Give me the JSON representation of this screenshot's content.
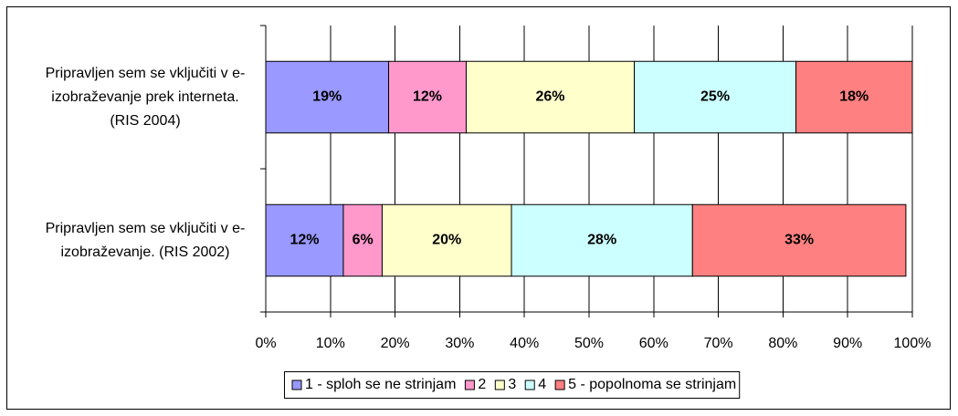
{
  "chart_data": {
    "type": "stacked-barh",
    "categories": [
      "Pripravljen sem se vključiti v e-izobraževanje prek interneta. (RIS 2004)",
      "Pripravljen sem se vključiti v e-izobraževanje. (RIS 2002)"
    ],
    "series": [
      {
        "name": "1 - sploh se ne strinjam",
        "color": "#9999ff",
        "values": [
          19,
          12
        ],
        "value_labels": [
          "19%",
          "12%"
        ]
      },
      {
        "name": "2",
        "color": "#ff99cc",
        "values": [
          12,
          6
        ],
        "value_labels": [
          "12%",
          "6%"
        ]
      },
      {
        "name": "3",
        "color": "#ffffcc",
        "values": [
          26,
          20
        ],
        "value_labels": [
          "26%",
          "20%"
        ]
      },
      {
        "name": "4",
        "color": "#ccffff",
        "values": [
          25,
          28
        ],
        "value_labels": [
          "25%",
          "28%"
        ]
      },
      {
        "name": "5 - popolnoma se strinjam",
        "color": "#ff8080",
        "values": [
          18,
          33
        ],
        "value_labels": [
          "18%",
          "33%"
        ]
      }
    ],
    "xlim": [
      0,
      100
    ],
    "xticks": [
      {
        "value": 0,
        "label": "0%"
      },
      {
        "value": 10,
        "label": "10%"
      },
      {
        "value": 20,
        "label": "20%"
      },
      {
        "value": 30,
        "label": "30%"
      },
      {
        "value": 40,
        "label": "40%"
      },
      {
        "value": 50,
        "label": "50%"
      },
      {
        "value": 60,
        "label": "60%"
      },
      {
        "value": 70,
        "label": "70%"
      },
      {
        "value": 80,
        "label": "80%"
      },
      {
        "value": 90,
        "label": "90%"
      },
      {
        "value": 100,
        "label": "100%"
      }
    ],
    "grid": true,
    "legend": "bottom"
  }
}
